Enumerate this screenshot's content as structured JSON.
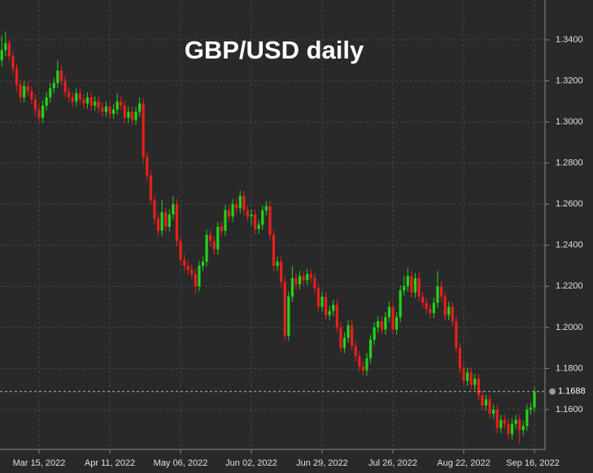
{
  "chart_data": {
    "type": "candlestick",
    "title": "GBP/USD daily",
    "categories": [
      null,
      null,
      null,
      null,
      null,
      null,
      null,
      null,
      null,
      null,
      "Mar 15, 2022",
      null,
      null,
      null,
      null,
      null,
      null,
      null,
      null,
      null,
      null,
      null,
      null,
      null,
      null,
      null,
      null,
      null,
      null,
      "Apr 11, 2022",
      null,
      null,
      null,
      null,
      null,
      null,
      null,
      null,
      null,
      null,
      null,
      null,
      null,
      null,
      null,
      null,
      null,
      null,
      "May 06, 2022",
      null,
      null,
      null,
      null,
      null,
      null,
      null,
      null,
      null,
      null,
      null,
      null,
      null,
      null,
      null,
      null,
      null,
      null,
      "Jun 02, 2022",
      null,
      null,
      null,
      null,
      null,
      null,
      null,
      null,
      null,
      null,
      null,
      null,
      null,
      null,
      null,
      null,
      null,
      null,
      "Jun 29, 2022",
      null,
      null,
      null,
      null,
      null,
      null,
      null,
      null,
      null,
      null,
      null,
      null,
      null,
      null,
      null,
      null,
      null,
      null,
      "Jul 26, 2022",
      null,
      null,
      null,
      null,
      null,
      null,
      null,
      null,
      null,
      null,
      null,
      null,
      null,
      null,
      null,
      null,
      null,
      null,
      "Aug 22, 2022",
      null,
      null,
      null,
      null,
      null,
      null,
      null,
      null,
      null,
      null,
      null,
      null,
      null,
      null,
      null,
      null,
      null,
      null,
      "Sep 16, 2022"
    ],
    "open": [
      1.33,
      1.335,
      1.3385,
      1.332,
      1.326,
      1.318,
      1.312,
      1.3175,
      1.315,
      1.311,
      1.306,
      1.302,
      1.308,
      1.312,
      1.3165,
      1.319,
      1.325,
      1.32,
      1.3145,
      1.312,
      1.31,
      1.314,
      1.311,
      1.309,
      1.312,
      1.308,
      1.31,
      1.307,
      1.305,
      1.3075,
      1.304,
      1.306,
      1.31,
      1.308,
      1.302,
      1.305,
      1.301,
      1.305,
      1.309,
      1.283,
      1.274,
      1.262,
      1.253,
      1.247,
      1.256,
      1.249,
      1.255,
      1.26,
      1.242,
      1.233,
      1.23,
      1.228,
      1.226,
      1.22,
      1.23,
      1.232,
      1.245,
      1.242,
      1.238,
      1.249,
      1.247,
      1.257,
      1.254,
      1.26,
      1.258,
      1.264,
      1.257,
      1.254,
      1.255,
      1.248,
      1.25,
      1.257,
      1.259,
      1.245,
      1.23,
      1.232,
      1.222,
      1.196,
      1.215,
      1.224,
      1.221,
      1.225,
      1.223,
      1.226,
      1.224,
      1.219,
      1.21,
      1.215,
      1.206,
      1.208,
      1.211,
      1.2,
      1.19,
      1.195,
      1.201,
      1.191,
      1.186,
      1.181,
      1.179,
      1.185,
      1.194,
      1.2,
      1.203,
      1.199,
      1.205,
      1.21,
      1.199,
      1.205,
      1.218,
      1.22,
      1.225,
      1.217,
      1.224,
      1.215,
      1.212,
      1.209,
      1.207,
      1.212,
      1.22,
      1.215,
      1.206,
      1.21,
      1.203,
      1.19,
      1.18,
      1.174,
      1.178,
      1.172,
      1.175,
      1.167,
      1.162,
      1.165,
      1.158,
      1.16,
      1.151,
      1.155,
      1.153,
      1.148,
      1.153,
      1.155,
      1.15,
      1.152,
      1.16,
      1.161
    ],
    "high": [
      1.342,
      1.344,
      1.34,
      1.3345,
      1.3285,
      1.3205,
      1.32,
      1.32,
      1.3175,
      1.3135,
      1.3085,
      1.3105,
      1.3145,
      1.319,
      1.3215,
      1.33,
      1.3275,
      1.3225,
      1.317,
      1.3145,
      1.3165,
      1.3165,
      1.3135,
      1.3145,
      1.3145,
      1.3125,
      1.3125,
      1.3095,
      1.31,
      1.31,
      1.3085,
      1.314,
      1.3125,
      1.3105,
      1.3075,
      1.3075,
      1.3075,
      1.312,
      1.3115,
      1.2855,
      1.2765,
      1.2645,
      1.2555,
      1.262,
      1.2585,
      1.2575,
      1.264,
      1.2625,
      1.2445,
      1.2355,
      1.2325,
      1.2305,
      1.2285,
      1.2325,
      1.2345,
      1.2475,
      1.2475,
      1.2445,
      1.2515,
      1.2515,
      1.2595,
      1.2595,
      1.2625,
      1.2625,
      1.2665,
      1.2665,
      1.2595,
      1.2575,
      1.2575,
      1.2525,
      1.2595,
      1.2615,
      1.2615,
      1.2475,
      1.2345,
      1.2345,
      1.2245,
      1.2175,
      1.23,
      1.2265,
      1.2275,
      1.2275,
      1.2285,
      1.2285,
      1.2265,
      1.2215,
      1.2175,
      1.2175,
      1.2105,
      1.2135,
      1.2135,
      1.2025,
      1.1975,
      1.2035,
      1.2035,
      1.1935,
      1.1885,
      1.1835,
      1.1875,
      1.1965,
      1.2025,
      1.2055,
      1.2055,
      1.2075,
      1.2125,
      1.2125,
      1.2075,
      1.2205,
      1.225,
      1.229,
      1.2275,
      1.2265,
      1.2265,
      1.2175,
      1.2145,
      1.2115,
      1.2145,
      1.2275,
      1.2225,
      1.2175,
      1.2125,
      1.2125,
      1.2055,
      1.1925,
      1.1825,
      1.1805,
      1.1805,
      1.1775,
      1.1775,
      1.1695,
      1.1675,
      1.1675,
      1.1625,
      1.1625,
      1.1575,
      1.1575,
      1.1555,
      1.1555,
      1.1575,
      1.1575,
      1.1545,
      1.1625,
      1.1635,
      1.171
    ],
    "low": [
      1.327,
      1.332,
      1.329,
      1.3235,
      1.315,
      1.3095,
      1.3095,
      1.3125,
      1.3085,
      1.303,
      1.3,
      1.2995,
      1.3055,
      1.3095,
      1.314,
      1.3165,
      1.3175,
      1.312,
      1.3095,
      1.3075,
      1.3075,
      1.3085,
      1.3065,
      1.3065,
      1.3055,
      1.3055,
      1.3045,
      1.3025,
      1.3025,
      1.3015,
      1.3015,
      1.3035,
      1.3055,
      1.2995,
      1.2995,
      1.2985,
      1.2985,
      1.3025,
      1.2805,
      1.2715,
      1.2595,
      1.2505,
      1.2445,
      1.2445,
      1.2465,
      1.2465,
      1.2525,
      1.2395,
      1.2305,
      1.2275,
      1.2255,
      1.2235,
      1.2165,
      1.2175,
      1.2275,
      1.2295,
      1.2395,
      1.2355,
      1.2355,
      1.2445,
      1.2445,
      1.2515,
      1.2515,
      1.2555,
      1.2555,
      1.2545,
      1.2515,
      1.2495,
      1.2455,
      1.2455,
      1.2475,
      1.2545,
      1.2425,
      1.2275,
      1.2275,
      1.2195,
      1.1935,
      1.1935,
      1.2125,
      1.2185,
      1.2185,
      1.2205,
      1.2205,
      1.2215,
      1.2165,
      1.2075,
      1.2075,
      1.2035,
      1.2035,
      1.2055,
      1.1975,
      1.1875,
      1.1875,
      1.1925,
      1.1885,
      1.1835,
      1.1785,
      1.1765,
      1.1765,
      1.1825,
      1.1915,
      1.1975,
      1.1965,
      1.1965,
      1.2025,
      1.1965,
      1.1965,
      1.2025,
      1.2155,
      1.2175,
      1.2145,
      1.2145,
      1.2125,
      1.2095,
      1.2065,
      1.2045,
      1.2045,
      1.2095,
      1.2125,
      1.2035,
      1.2035,
      1.2005,
      1.1875,
      1.1775,
      1.1715,
      1.1715,
      1.1695,
      1.1695,
      1.1645,
      1.1595,
      1.1595,
      1.1555,
      1.1555,
      1.1485,
      1.1485,
      1.1505,
      1.1455,
      1.1455,
      1.1505,
      1.1435,
      1.1475,
      1.1495,
      1.1575,
      1.1585
    ],
    "close": [
      1.335,
      1.3385,
      1.332,
      1.326,
      1.318,
      1.312,
      1.3175,
      1.315,
      1.311,
      1.306,
      1.302,
      1.308,
      1.312,
      1.3165,
      1.319,
      1.325,
      1.32,
      1.3145,
      1.312,
      1.31,
      1.314,
      1.311,
      1.309,
      1.312,
      1.308,
      1.31,
      1.307,
      1.305,
      1.3075,
      1.304,
      1.306,
      1.31,
      1.308,
      1.302,
      1.305,
      1.301,
      1.305,
      1.309,
      1.283,
      1.274,
      1.262,
      1.253,
      1.247,
      1.256,
      1.249,
      1.255,
      1.26,
      1.242,
      1.233,
      1.23,
      1.228,
      1.226,
      1.22,
      1.23,
      1.232,
      1.245,
      1.242,
      1.238,
      1.249,
      1.247,
      1.257,
      1.254,
      1.26,
      1.258,
      1.264,
      1.257,
      1.254,
      1.255,
      1.248,
      1.25,
      1.257,
      1.259,
      1.245,
      1.23,
      1.232,
      1.222,
      1.196,
      1.215,
      1.224,
      1.221,
      1.225,
      1.223,
      1.226,
      1.224,
      1.219,
      1.21,
      1.215,
      1.206,
      1.208,
      1.211,
      1.2,
      1.19,
      1.195,
      1.201,
      1.191,
      1.186,
      1.181,
      1.179,
      1.185,
      1.194,
      1.2,
      1.203,
      1.199,
      1.205,
      1.21,
      1.199,
      1.205,
      1.218,
      1.22,
      1.225,
      1.217,
      1.224,
      1.215,
      1.212,
      1.209,
      1.207,
      1.212,
      1.22,
      1.215,
      1.206,
      1.21,
      1.203,
      1.19,
      1.18,
      1.174,
      1.178,
      1.172,
      1.175,
      1.167,
      1.162,
      1.165,
      1.158,
      1.16,
      1.151,
      1.155,
      1.153,
      1.148,
      1.153,
      1.155,
      1.15,
      1.152,
      1.16,
      1.161,
      1.1688
    ],
    "up_color": "#22d41a",
    "down_color": "#e8201c",
    "ylim": [
      1.1406,
      1.3594
    ],
    "yticks": [
      {
        "value": 1.16,
        "label": "1.1600"
      },
      {
        "value": 1.18,
        "label": "1.1800"
      },
      {
        "value": 1.2,
        "label": "1.2000"
      },
      {
        "value": 1.22,
        "label": "1.2200"
      },
      {
        "value": 1.24,
        "label": "1.2400"
      },
      {
        "value": 1.26,
        "label": "1.2600"
      },
      {
        "value": 1.28,
        "label": "1.2800"
      },
      {
        "value": 1.3,
        "label": "1.3000"
      },
      {
        "value": 1.32,
        "label": "1.3200"
      },
      {
        "value": 1.34,
        "label": "1.3400"
      }
    ],
    "last_price": {
      "value": 1.1688,
      "label": "1.1688"
    },
    "grid": true
  }
}
